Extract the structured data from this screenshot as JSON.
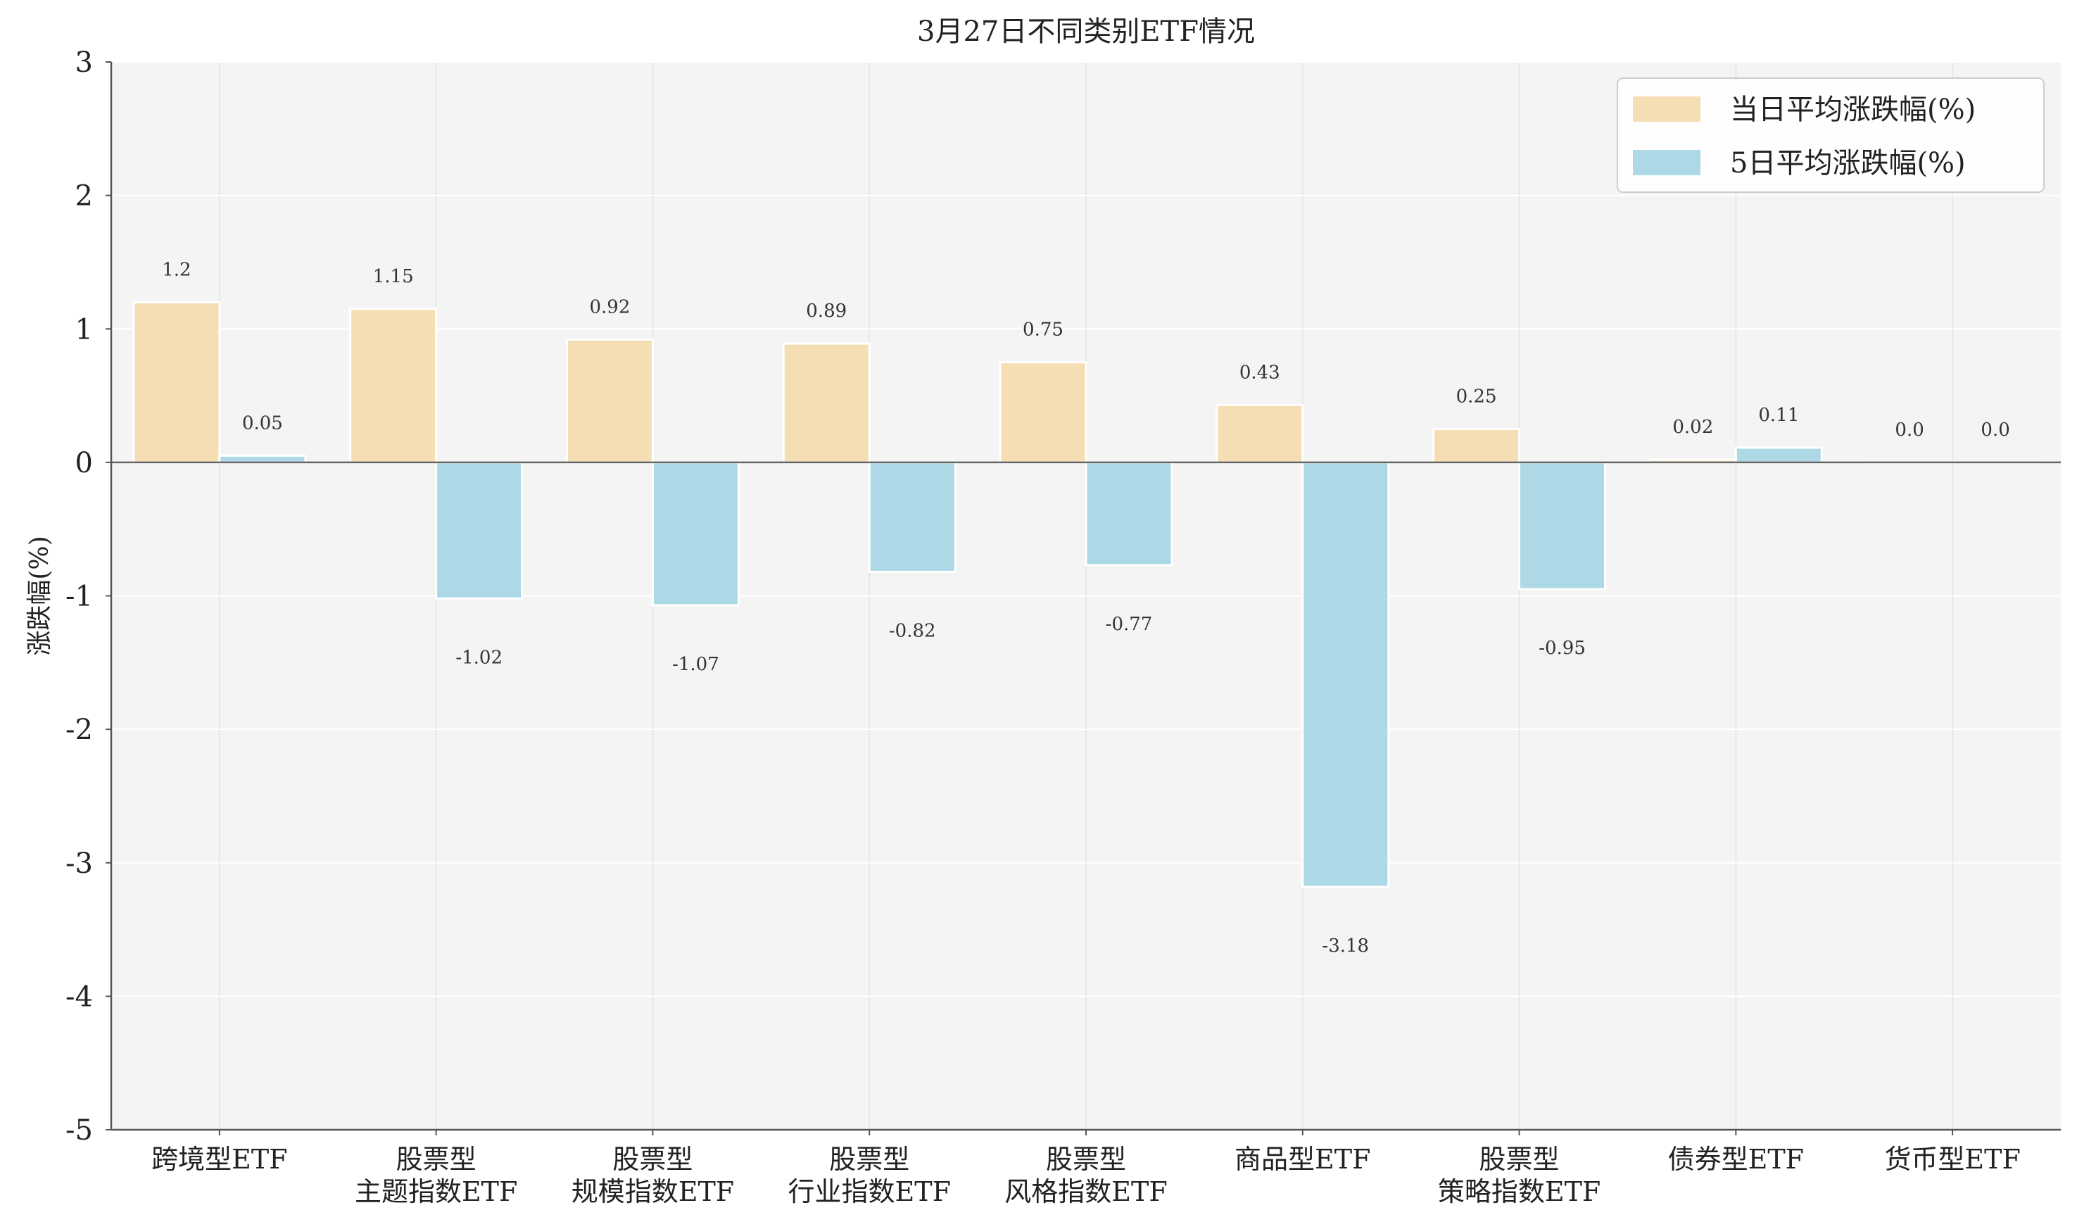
{
  "chart_data": {
    "type": "bar",
    "title": "3月27日不同类别ETF情况",
    "xlabel": "",
    "ylabel": "涨跌幅(%)",
    "ylim": [
      -5,
      3
    ],
    "yticks": [
      3,
      2,
      1,
      0,
      -1,
      -2,
      -3,
      -4,
      -5
    ],
    "grid": true,
    "legend_position": "top-right",
    "categories": [
      [
        "跨境型ETF"
      ],
      [
        "股票型",
        "主题指数ETF"
      ],
      [
        "股票型",
        "规模指数ETF"
      ],
      [
        "股票型",
        "行业指数ETF"
      ],
      [
        "股票型",
        "风格指数ETF"
      ],
      [
        "商品型ETF"
      ],
      [
        "股票型",
        "策略指数ETF"
      ],
      [
        "债券型ETF"
      ],
      [
        "货币型ETF"
      ]
    ],
    "series": [
      {
        "name": "当日平均涨跌幅(%)",
        "color": "#f5deb3",
        "values": [
          1.2,
          1.15,
          0.92,
          0.89,
          0.75,
          0.43,
          0.25,
          0.02,
          0.0
        ],
        "labels": [
          "1.2",
          "1.15",
          "0.92",
          "0.89",
          "0.75",
          "0.43",
          "0.25",
          "0.02",
          "0.0"
        ]
      },
      {
        "name": "5日平均涨跌幅(%)",
        "color": "#add8e6",
        "values": [
          0.05,
          -1.02,
          -1.07,
          -0.82,
          -0.77,
          -3.18,
          -0.95,
          0.11,
          0.0
        ],
        "labels": [
          "0.05",
          "-1.02",
          "-1.07",
          "-0.82",
          "-0.77",
          "-3.18",
          "-0.95",
          "0.11",
          "0.0"
        ]
      }
    ]
  },
  "colors": {
    "plot_background": "#f4f4f4",
    "grid": "#ffffff",
    "axis": "#555555"
  }
}
